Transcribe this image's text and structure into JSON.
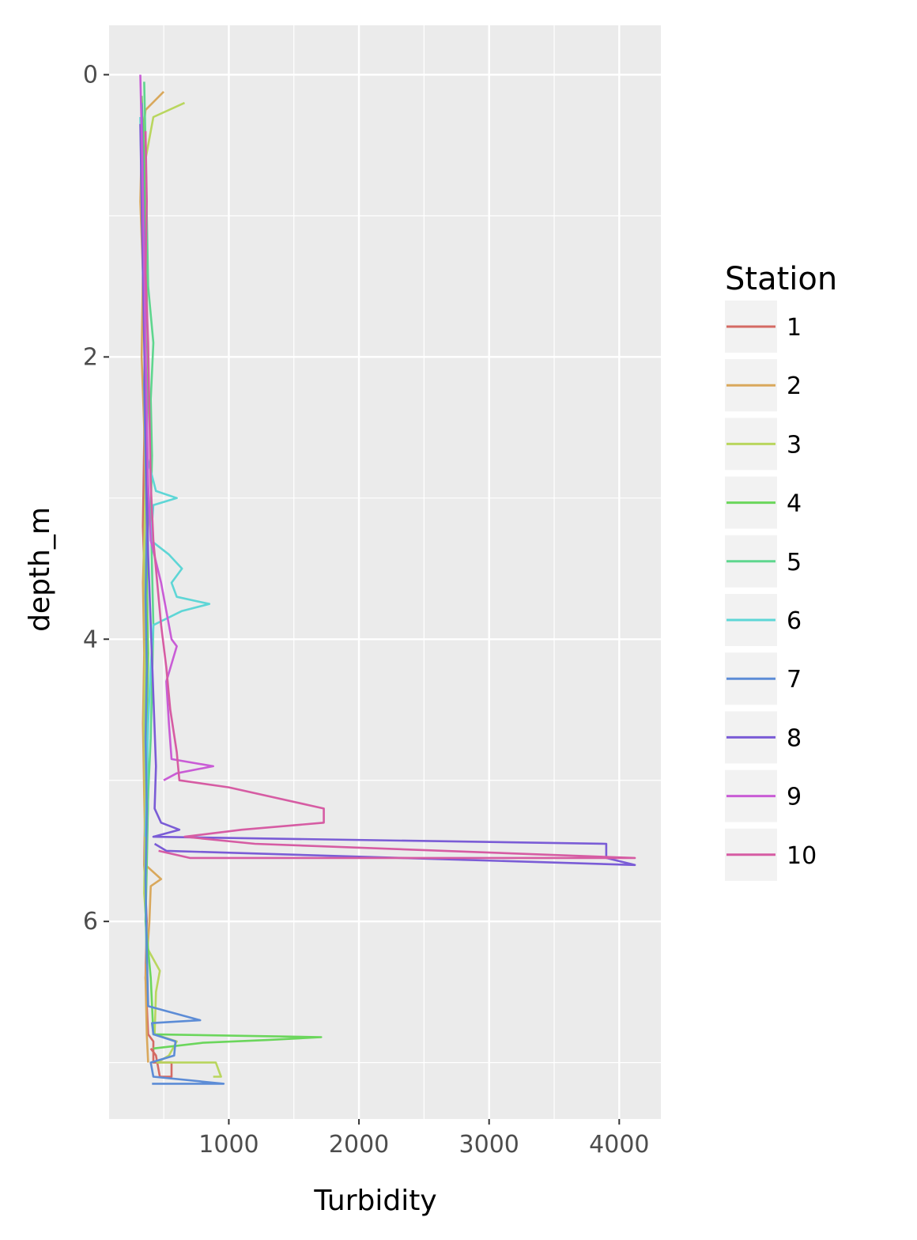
{
  "chart_data": {
    "type": "line",
    "xlabel": "Turbidity",
    "ylabel": "depth_m",
    "xlim": [
      80,
      4320
    ],
    "ylim": [
      0,
      7.4
    ],
    "y_reversed": true,
    "x_ticks": [
      1000,
      2000,
      3000,
      4000
    ],
    "x_tick_labels": [
      "1000",
      "2000",
      "3000",
      "4000"
    ],
    "y_ticks": [
      0,
      2,
      4,
      6
    ],
    "y_tick_labels": [
      "0",
      "2",
      "4",
      "6"
    ],
    "grid": true,
    "legend": {
      "title": "Station",
      "position": "right"
    },
    "series": [
      {
        "name": "1",
        "color": "#D46A64",
        "points": [
          [
            330,
            0.4
          ],
          [
            350,
            0.9
          ],
          [
            340,
            1.5
          ],
          [
            360,
            2.0
          ],
          [
            350,
            2.6
          ],
          [
            340,
            3.2
          ],
          [
            360,
            3.8
          ],
          [
            350,
            4.4
          ],
          [
            360,
            5.0
          ],
          [
            350,
            5.6
          ],
          [
            370,
            6.0
          ],
          [
            360,
            6.4
          ],
          [
            380,
            6.8
          ],
          [
            420,
            6.85
          ],
          [
            420,
            7.0
          ],
          [
            560,
            7.0
          ],
          [
            560,
            7.1
          ],
          [
            470,
            7.1
          ],
          [
            440,
            6.95
          ],
          [
            400,
            6.9
          ]
        ]
      },
      {
        "name": "2",
        "color": "#D9A85C",
        "points": [
          [
            500,
            0.12
          ],
          [
            360,
            0.25
          ],
          [
            330,
            0.5
          ],
          [
            320,
            0.9
          ],
          [
            340,
            1.4
          ],
          [
            330,
            2.0
          ],
          [
            350,
            2.5
          ],
          [
            360,
            3.0
          ],
          [
            340,
            3.6
          ],
          [
            350,
            4.1
          ],
          [
            340,
            4.6
          ],
          [
            350,
            5.1
          ],
          [
            360,
            5.6
          ],
          [
            480,
            5.7
          ],
          [
            400,
            5.75
          ],
          [
            390,
            6.0
          ],
          [
            360,
            6.4
          ],
          [
            370,
            6.8
          ],
          [
            380,
            7.0
          ]
        ]
      },
      {
        "name": "3",
        "color": "#B9D65E",
        "points": [
          [
            660,
            0.2
          ],
          [
            420,
            0.3
          ],
          [
            360,
            0.6
          ],
          [
            350,
            1.0
          ],
          [
            360,
            1.6
          ],
          [
            350,
            2.2
          ],
          [
            360,
            2.8
          ],
          [
            350,
            3.4
          ],
          [
            360,
            4.0
          ],
          [
            350,
            4.6
          ],
          [
            360,
            5.2
          ],
          [
            350,
            5.8
          ],
          [
            380,
            6.2
          ],
          [
            470,
            6.35
          ],
          [
            440,
            6.5
          ],
          [
            430,
            6.8
          ],
          [
            600,
            6.85
          ],
          [
            540,
            6.95
          ],
          [
            450,
            7.0
          ],
          [
            900,
            7.0
          ],
          [
            940,
            7.1
          ],
          [
            880,
            7.1
          ]
        ]
      },
      {
        "name": "4",
        "color": "#6BD65C",
        "points": [
          [
            330,
            0.15
          ],
          [
            350,
            0.6
          ],
          [
            360,
            1.1
          ],
          [
            370,
            1.6
          ],
          [
            380,
            2.1
          ],
          [
            370,
            2.6
          ],
          [
            380,
            3.1
          ],
          [
            370,
            3.6
          ],
          [
            380,
            4.1
          ],
          [
            370,
            4.6
          ],
          [
            380,
            5.1
          ],
          [
            370,
            5.6
          ],
          [
            360,
            6.0
          ],
          [
            400,
            6.4
          ],
          [
            420,
            6.8
          ],
          [
            1710,
            6.82
          ],
          [
            1300,
            6.84
          ],
          [
            800,
            6.86
          ],
          [
            420,
            6.9
          ]
        ]
      },
      {
        "name": "5",
        "color": "#5ED68E",
        "points": [
          [
            350,
            0.05
          ],
          [
            360,
            0.5
          ],
          [
            370,
            1.0
          ],
          [
            380,
            1.5
          ],
          [
            420,
            1.9
          ],
          [
            400,
            2.3
          ],
          [
            410,
            2.7
          ],
          [
            400,
            3.1
          ],
          [
            410,
            3.5
          ],
          [
            420,
            3.9
          ],
          [
            410,
            4.3
          ],
          [
            400,
            4.7
          ],
          [
            380,
            5.1
          ],
          [
            370,
            5.5
          ],
          [
            360,
            5.9
          ],
          [
            370,
            6.3
          ]
        ]
      },
      {
        "name": "6",
        "color": "#5ED6D6",
        "points": [
          [
            320,
            0.3
          ],
          [
            330,
            0.8
          ],
          [
            340,
            1.2
          ],
          [
            350,
            1.7
          ],
          [
            360,
            2.2
          ],
          [
            370,
            2.7
          ],
          [
            440,
            2.95
          ],
          [
            600,
            3.0
          ],
          [
            420,
            3.05
          ],
          [
            400,
            3.3
          ],
          [
            540,
            3.4
          ],
          [
            640,
            3.5
          ],
          [
            560,
            3.6
          ],
          [
            600,
            3.7
          ],
          [
            850,
            3.75
          ],
          [
            640,
            3.8
          ],
          [
            420,
            3.9
          ],
          [
            400,
            4.2
          ],
          [
            380,
            4.6
          ],
          [
            370,
            5.0
          ],
          [
            360,
            5.4
          ]
        ]
      },
      {
        "name": "7",
        "color": "#5C8CD6",
        "points": [
          [
            330,
            0.2
          ],
          [
            340,
            0.7
          ],
          [
            350,
            1.2
          ],
          [
            360,
            1.7
          ],
          [
            350,
            2.2
          ],
          [
            360,
            2.7
          ],
          [
            370,
            3.2
          ],
          [
            360,
            3.7
          ],
          [
            370,
            4.2
          ],
          [
            360,
            4.7
          ],
          [
            370,
            5.2
          ],
          [
            360,
            5.7
          ],
          [
            370,
            6.2
          ],
          [
            380,
            6.6
          ],
          [
            780,
            6.7
          ],
          [
            410,
            6.72
          ],
          [
            420,
            6.8
          ],
          [
            590,
            6.85
          ],
          [
            580,
            6.95
          ],
          [
            400,
            7.0
          ],
          [
            420,
            7.1
          ],
          [
            960,
            7.15
          ],
          [
            410,
            7.15
          ]
        ]
      },
      {
        "name": "8",
        "color": "#7A5CD6",
        "points": [
          [
            320,
            0.35
          ],
          [
            330,
            0.9
          ],
          [
            340,
            1.4
          ],
          [
            350,
            1.9
          ],
          [
            360,
            2.4
          ],
          [
            370,
            2.9
          ],
          [
            380,
            3.4
          ],
          [
            400,
            3.9
          ],
          [
            420,
            4.4
          ],
          [
            440,
            4.9
          ],
          [
            430,
            5.2
          ],
          [
            480,
            5.3
          ],
          [
            620,
            5.35
          ],
          [
            420,
            5.4
          ],
          [
            3900,
            5.45
          ],
          [
            3900,
            5.55
          ],
          [
            4120,
            5.6
          ],
          [
            520,
            5.5
          ],
          [
            430,
            5.45
          ]
        ]
      },
      {
        "name": "9",
        "color": "#C95CD6",
        "points": [
          [
            320,
            0.0
          ],
          [
            330,
            0.4
          ],
          [
            340,
            0.9
          ],
          [
            350,
            1.4
          ],
          [
            360,
            1.9
          ],
          [
            370,
            2.4
          ],
          [
            380,
            2.9
          ],
          [
            400,
            3.3
          ],
          [
            480,
            3.6
          ],
          [
            520,
            3.8
          ],
          [
            560,
            4.0
          ],
          [
            600,
            4.05
          ],
          [
            520,
            4.3
          ],
          [
            540,
            4.6
          ],
          [
            560,
            4.85
          ],
          [
            880,
            4.9
          ],
          [
            600,
            4.95
          ],
          [
            500,
            5.0
          ]
        ]
      },
      {
        "name": "10",
        "color": "#D65CA3",
        "points": [
          [
            360,
            0.4
          ],
          [
            370,
            0.9
          ],
          [
            360,
            1.4
          ],
          [
            380,
            1.9
          ],
          [
            390,
            2.4
          ],
          [
            400,
            2.9
          ],
          [
            420,
            3.3
          ],
          [
            450,
            3.6
          ],
          [
            480,
            3.9
          ],
          [
            520,
            4.2
          ],
          [
            550,
            4.5
          ],
          [
            600,
            4.8
          ],
          [
            620,
            5.0
          ],
          [
            1000,
            5.05
          ],
          [
            1730,
            5.2
          ],
          [
            1730,
            5.3
          ],
          [
            1100,
            5.35
          ],
          [
            660,
            5.4
          ],
          [
            1200,
            5.45
          ],
          [
            4120,
            5.55
          ],
          [
            700,
            5.55
          ],
          [
            460,
            5.5
          ]
        ]
      }
    ]
  }
}
